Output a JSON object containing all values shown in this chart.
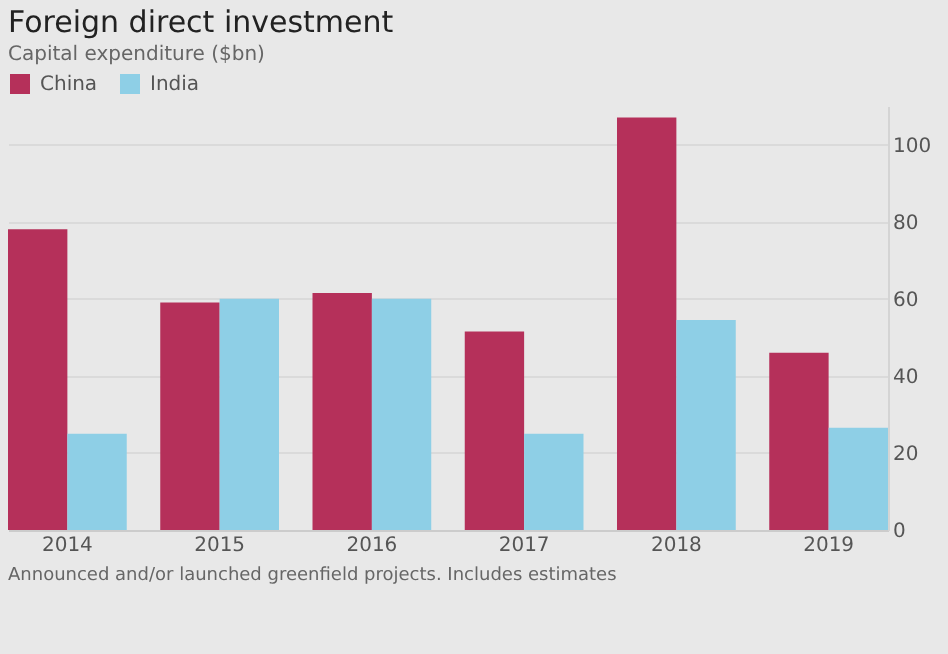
{
  "chart_data": {
    "type": "bar",
    "title": "Foreign direct investment",
    "subtitle": "Capital expenditure ($bn)",
    "categories": [
      "2014",
      "2015",
      "2016",
      "2017",
      "2018",
      "2019"
    ],
    "series": [
      {
        "name": "China",
        "color": "#b5305a",
        "values": [
          78,
          59,
          61.5,
          51.5,
          107,
          46
        ]
      },
      {
        "name": "India",
        "color": "#8ecfe6",
        "values": [
          25,
          60,
          60,
          25,
          54.5,
          26.5
        ]
      }
    ],
    "ylim": [
      0,
      110
    ],
    "yticks": [
      0,
      20,
      40,
      60,
      80,
      100
    ],
    "grid": "y",
    "legend": "top left",
    "annotations": [
      "Announced and/or launched greenfield projects. Includes estimates"
    ]
  }
}
